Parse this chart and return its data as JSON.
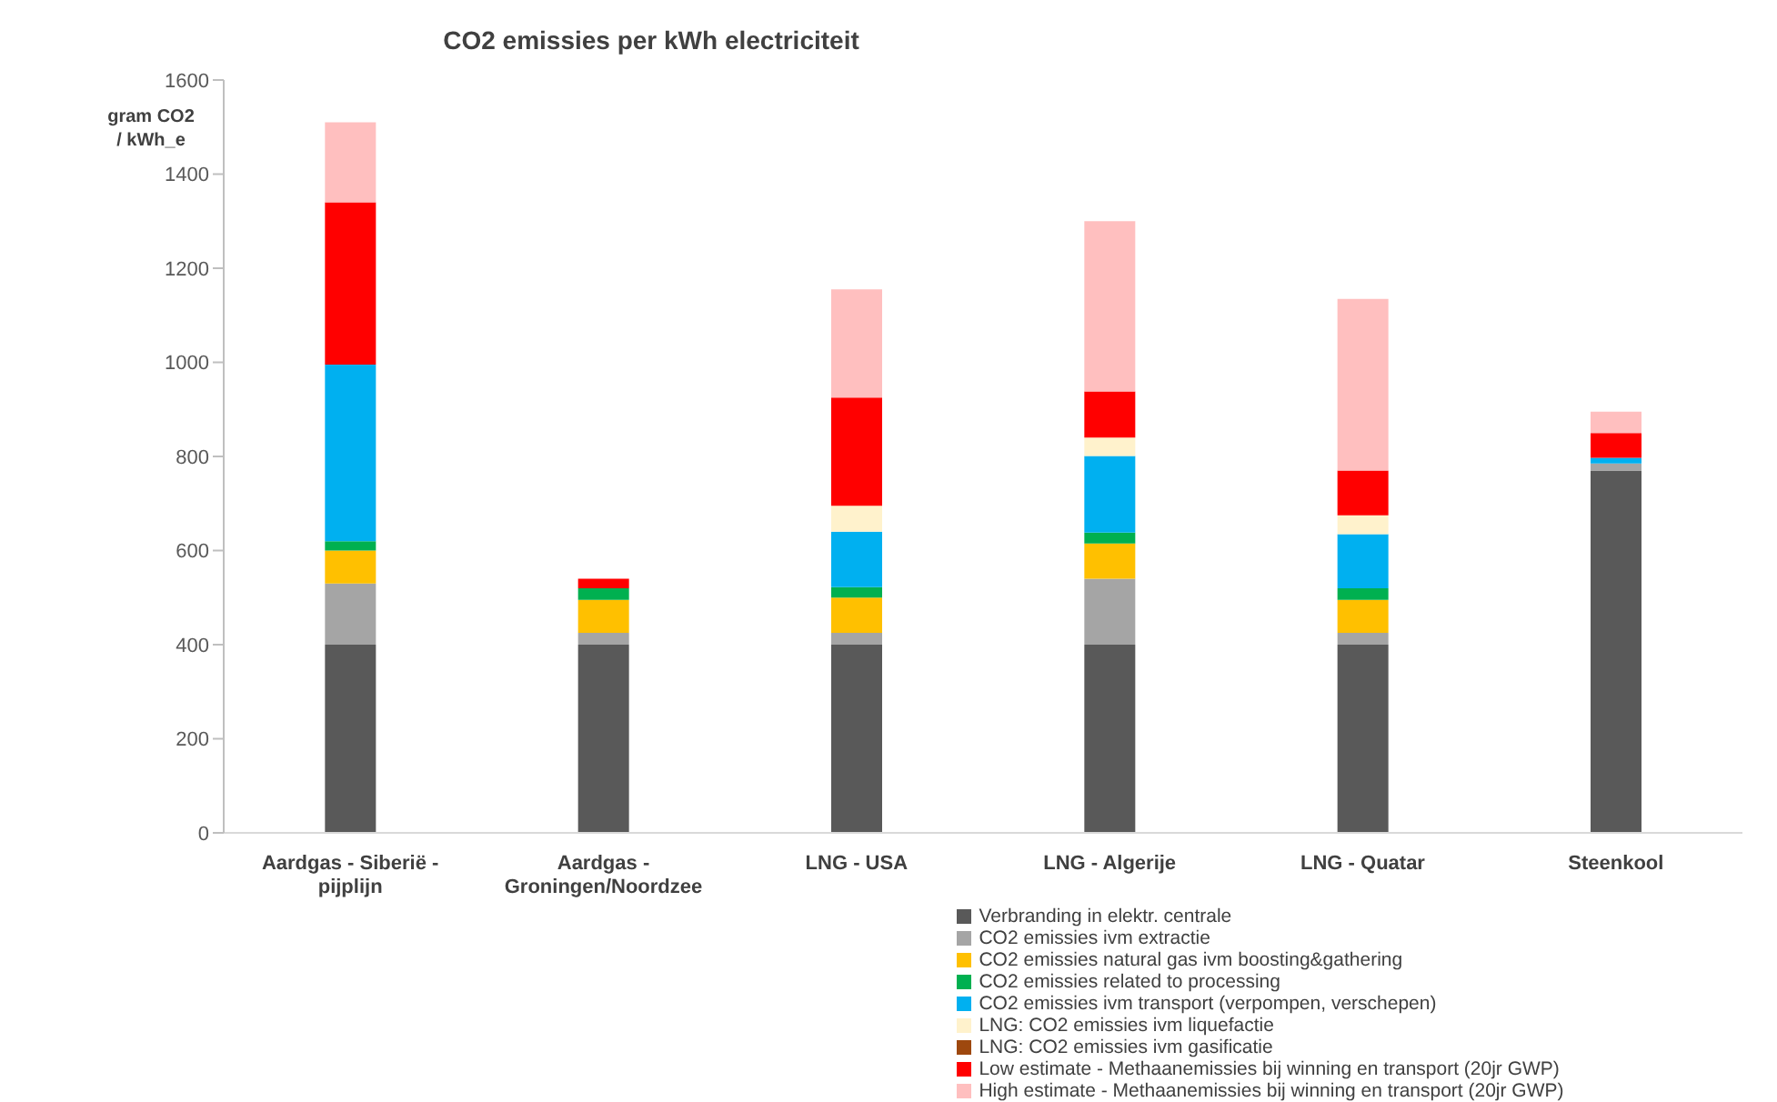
{
  "chart_data": {
    "type": "bar",
    "stacked": true,
    "title": "CO2 emissies per kWh electriciteit",
    "ylabel": "gram CO2 / kWh_e",
    "categories": [
      "Aardgas - Siberië - pijplijn",
      "Aardgas - Groningen/Noordzee",
      "LNG - USA",
      "LNG - Algerije",
      "LNG - Quatar",
      "Steenkool"
    ],
    "series": [
      {
        "name": "Verbranding in elektr. centrale",
        "color": "#595959",
        "values": [
          400,
          400,
          400,
          400,
          400,
          770
        ]
      },
      {
        "name": "CO2 emissies ivm extractie",
        "color": "#a5a5a5",
        "values": [
          130,
          25,
          25,
          140,
          25,
          15
        ]
      },
      {
        "name": "CO2 emissies natural gas ivm boosting&gathering",
        "color": "#ffc000",
        "values": [
          70,
          70,
          75,
          75,
          70,
          0
        ]
      },
      {
        "name": "CO2 emissies related to processing",
        "color": "#00b050",
        "values": [
          20,
          25,
          22,
          23,
          25,
          0
        ]
      },
      {
        "name": "CO2 emissies ivm transport (verpompen, verschepen)",
        "color": "#00b0f0",
        "values": [
          375,
          0,
          118,
          163,
          115,
          12
        ]
      },
      {
        "name": "LNG: CO2 emissies ivm liquefactie",
        "color": "#fff2cc",
        "values": [
          0,
          0,
          55,
          39,
          40,
          0
        ]
      },
      {
        "name": "LNG: CO2 emissies ivm gasificatie",
        "color": "#9e480e",
        "values": [
          0,
          0,
          0,
          0,
          0,
          0
        ]
      },
      {
        "name": "Low estimate - Methaanemissies bij winning en transport (20jr GWP)",
        "color": "#ff0000",
        "values": [
          345,
          20,
          230,
          98,
          95,
          53
        ]
      },
      {
        "name": "High estimate - Methaanemissies bij winning en transport (20jr GWP)",
        "color": "#ffbfbf",
        "values": [
          170,
          0,
          230,
          362,
          365,
          45
        ]
      }
    ],
    "ylim": [
      0,
      1600
    ],
    "yticks": [
      0,
      200,
      400,
      600,
      800,
      1000,
      1200,
      1400,
      1600
    ],
    "grid": false,
    "legend": "bottom"
  }
}
